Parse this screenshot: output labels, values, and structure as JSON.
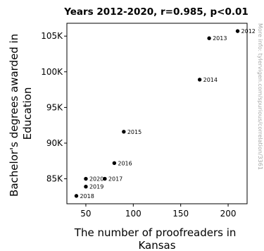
{
  "chart_data": {
    "type": "scatter",
    "title": "Years 2012-2020, r=0.985, p<0.01",
    "xlabel": [
      "The number of proofreaders in",
      "Kansas"
    ],
    "ylabel": [
      "Bachelor's degrees awarded in",
      "Education"
    ],
    "xlim": [
      30,
      220
    ],
    "ylim": [
      81500,
      106800
    ],
    "x_ticks": [
      {
        "value": 50,
        "label": "50"
      },
      {
        "value": 100,
        "label": "100"
      },
      {
        "value": 150,
        "label": "150"
      },
      {
        "value": 200,
        "label": "200"
      }
    ],
    "y_ticks": [
      {
        "value": 85000,
        "label": "85K"
      },
      {
        "value": 90000,
        "label": "90K"
      },
      {
        "value": 95000,
        "label": "95K"
      },
      {
        "value": 100000,
        "label": "100K"
      },
      {
        "value": 105000,
        "label": "105K"
      }
    ],
    "points": [
      {
        "label": "2012",
        "x": 210,
        "y": 105700
      },
      {
        "label": "2013",
        "x": 180,
        "y": 104700
      },
      {
        "label": "2014",
        "x": 170,
        "y": 98900
      },
      {
        "label": "2015",
        "x": 90,
        "y": 91600
      },
      {
        "label": "2016",
        "x": 80,
        "y": 87200
      },
      {
        "label": "2017",
        "x": 70,
        "y": 85000
      },
      {
        "label": "2018",
        "x": 40,
        "y": 82600
      },
      {
        "label": "2019",
        "x": 50,
        "y": 83900
      },
      {
        "label": "2020",
        "x": 50,
        "y": 85000
      }
    ],
    "grid": false,
    "point_color": "#000000"
  },
  "side_note": "More info: tylervigen.com/spurious/correlation/3361"
}
